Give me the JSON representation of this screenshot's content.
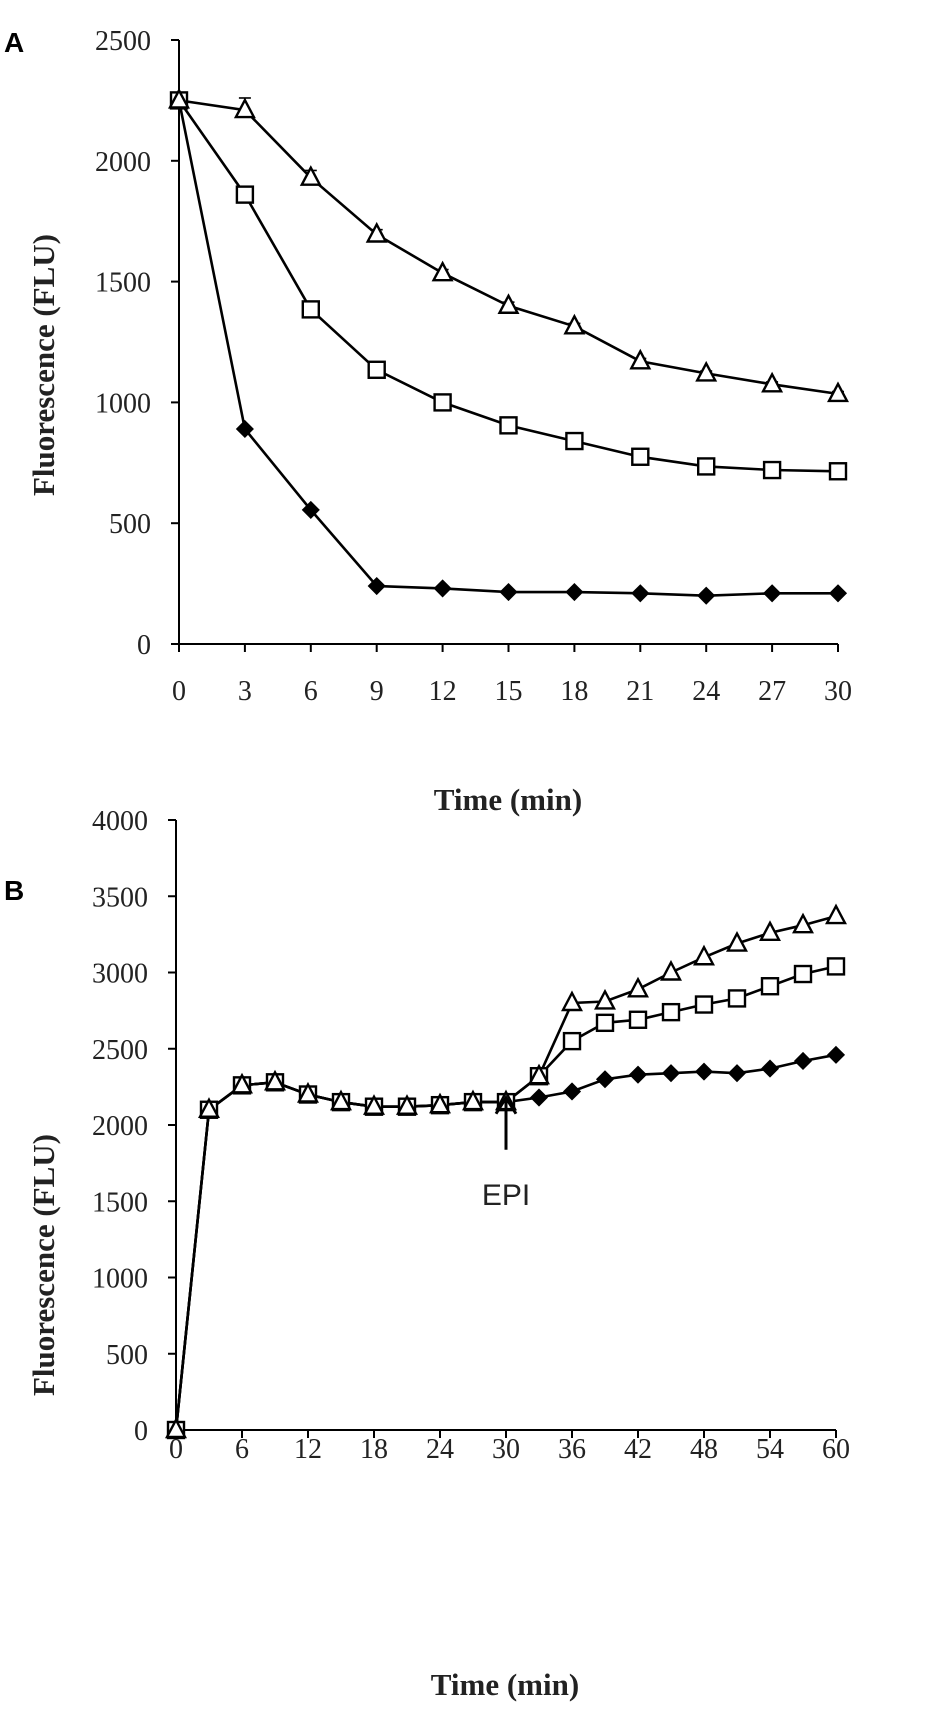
{
  "chart_data": [
    {
      "panel": "A",
      "type": "line",
      "title": "",
      "xlabel": "Time (min)",
      "ylabel": "Fluorescence (FLU)",
      "xlim": [
        0,
        30
      ],
      "ylim": [
        0,
        2500
      ],
      "xticks": [
        0,
        3,
        6,
        9,
        12,
        15,
        18,
        21,
        24,
        27,
        30
      ],
      "yticks": [
        0,
        500,
        1000,
        1500,
        2000,
        2500
      ],
      "x": [
        0,
        3,
        6,
        9,
        12,
        15,
        18,
        21,
        24,
        27,
        30
      ],
      "grid": false,
      "legend": "none",
      "series": [
        {
          "name": "filled diamonds",
          "marker": "diamond-filled",
          "values": [
            2250,
            890,
            555,
            240,
            230,
            215,
            215,
            210,
            200,
            210,
            210
          ]
        },
        {
          "name": "open squares",
          "marker": "square-open",
          "values": [
            2250,
            1860,
            1385,
            1135,
            1000,
            905,
            840,
            775,
            735,
            720,
            715
          ]
        },
        {
          "name": "open triangles",
          "marker": "triangle-open",
          "values": [
            2250,
            2210,
            1930,
            1695,
            1535,
            1400,
            1315,
            1170,
            1120,
            1075,
            1035
          ],
          "error_bars": [
            0,
            50,
            30,
            20,
            15,
            15,
            12,
            12,
            10,
            10,
            10
          ]
        }
      ],
      "annotations": []
    },
    {
      "panel": "B",
      "type": "line",
      "title": "",
      "xlabel": "Time (min)",
      "ylabel": "Fluorescence (FLU)",
      "xlim": [
        0,
        60
      ],
      "ylim": [
        0,
        4000
      ],
      "xticks": [
        0,
        6,
        12,
        18,
        24,
        30,
        36,
        42,
        48,
        54,
        60
      ],
      "yticks": [
        0,
        500,
        1000,
        1500,
        2000,
        2500,
        3000,
        3500,
        4000
      ],
      "x": [
        0,
        3,
        6,
        9,
        12,
        15,
        18,
        21,
        24,
        27,
        30,
        33,
        36,
        39,
        42,
        45,
        48,
        51,
        54,
        57,
        60
      ],
      "grid": false,
      "legend": "none",
      "series": [
        {
          "name": "filled diamonds",
          "marker": "diamond-filled",
          "values": [
            0,
            2100,
            2260,
            2280,
            2200,
            2150,
            2120,
            2120,
            2130,
            2150,
            2150,
            2180,
            2220,
            2300,
            2330,
            2340,
            2350,
            2340,
            2370,
            2420,
            2460
          ]
        },
        {
          "name": "open squares",
          "marker": "square-open",
          "values": [
            0,
            2100,
            2260,
            2280,
            2200,
            2150,
            2120,
            2120,
            2130,
            2150,
            2150,
            2320,
            2550,
            2670,
            2690,
            2740,
            2790,
            2830,
            2910,
            2990,
            3040
          ]
        },
        {
          "name": "open triangles",
          "marker": "triangle-open",
          "values": [
            0,
            2100,
            2260,
            2280,
            2200,
            2150,
            2120,
            2120,
            2130,
            2150,
            2150,
            2320,
            2800,
            2810,
            2890,
            3000,
            3100,
            3190,
            3260,
            3310,
            3370
          ]
        }
      ],
      "annotations": [
        {
          "text": "EPI",
          "x": 30,
          "y": 2100,
          "arrow": "up"
        }
      ]
    }
  ]
}
